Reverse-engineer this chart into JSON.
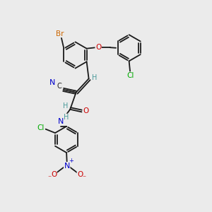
{
  "bg_color": "#ebebeb",
  "bond_color": "#1a1a1a",
  "atom_colors": {
    "Br": "#cc6600",
    "Cl": "#00aa00",
    "O": "#cc0000",
    "N": "#0000cc",
    "C": "#1a1a1a",
    "H": "#4a9a9a"
  },
  "font_size": 7.0,
  "ring_r": 0.62,
  "lw": 1.3
}
